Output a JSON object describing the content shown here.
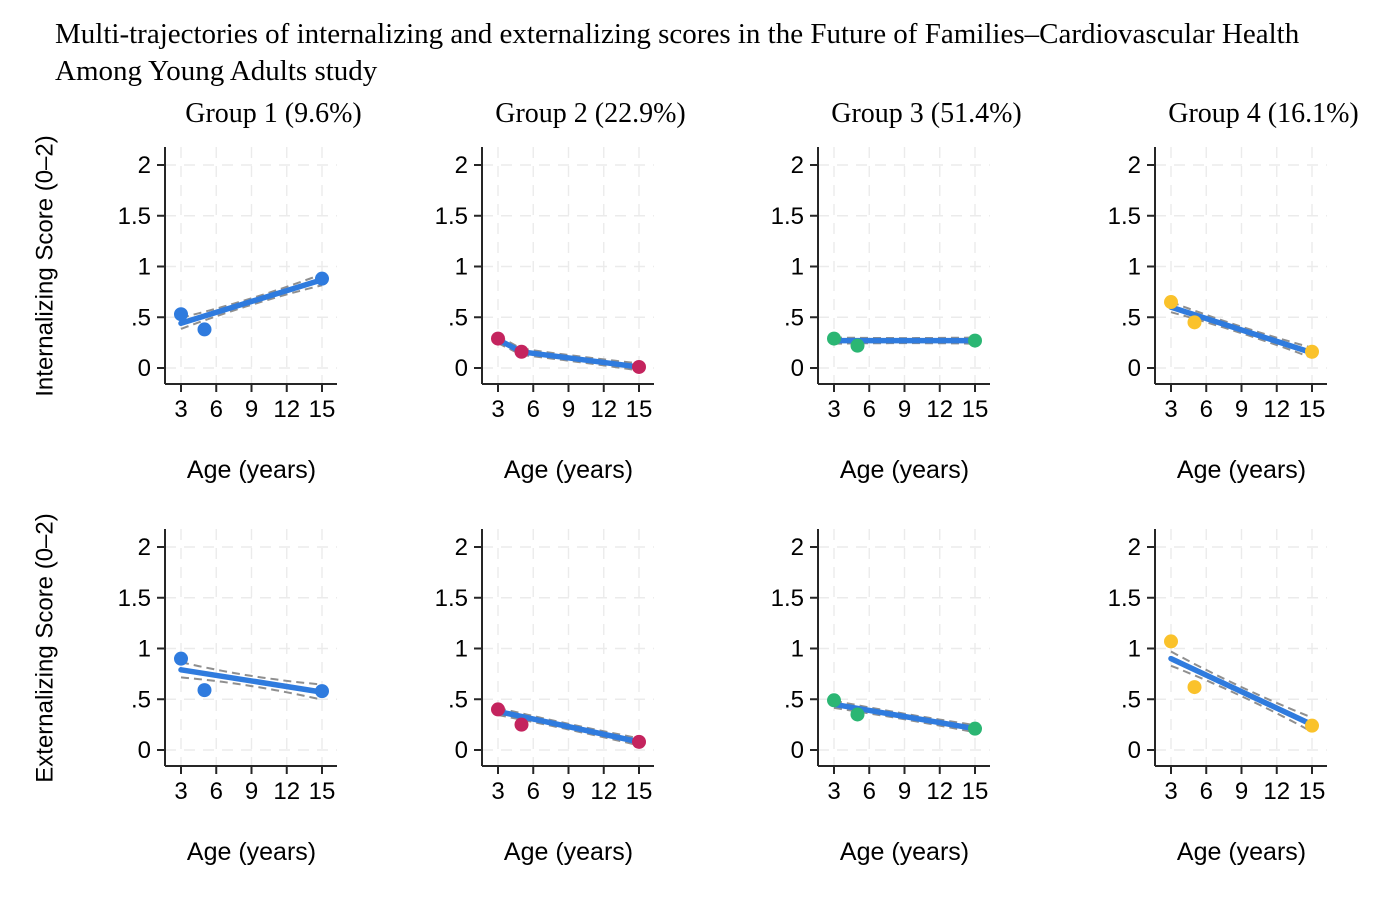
{
  "title_lines": [
    "Multi-trajectories of internalizing and externalizing scores in the Future of Families–Cardiovascular Health",
    "Among Young Adults study"
  ],
  "colors": {
    "background": "#FFFFFF",
    "trend_line": "#2F7BDE",
    "ci_band": "#8F8F8F",
    "gridline": "#EBEBEB",
    "axis": "#262626",
    "text": "#000000"
  },
  "chart_data": {
    "type": "scatter",
    "subtype": "multi-panel trajectory plot with linear trend lines and dashed confidence bands",
    "layout": {
      "rows": 2,
      "cols": 4,
      "grid": "dashed light-gray gridlines on both axes",
      "legend": "none"
    },
    "title": "Multi-trajectories of internalizing and externalizing scores in the Future of Families–Cardiovascular Health Among Young Adults study",
    "column_labels": [
      "Group 1 (9.6%)",
      "Group 2 (22.9%)",
      "Group 3 (51.4%)",
      "Group 4 (16.1%)"
    ],
    "row_labels": [
      "Internalizing Score (0–2)",
      "Externalizing Score (0–2)"
    ],
    "marker_colors": [
      "#2F7BDE",
      "#C4245E",
      "#2BB673",
      "#FAC22B"
    ],
    "x": {
      "label": "Age (years)",
      "ticks": [
        3,
        6,
        9,
        12,
        15
      ],
      "domain": [
        3,
        15
      ]
    },
    "y": {
      "tick_values": [
        0,
        0.5,
        1,
        1.5,
        2
      ],
      "tick_labels": [
        "0",
        ".5",
        "1",
        "1.5",
        "2"
      ],
      "domain": [
        0,
        2
      ]
    },
    "panels": [
      {
        "row": 0,
        "col": 0,
        "scatter": {
          "x": [
            3,
            5,
            15
          ],
          "y": [
            0.53,
            0.38,
            0.88
          ]
        },
        "trend": {
          "x": [
            3,
            15
          ],
          "y": [
            0.44,
            0.87
          ]
        },
        "ci": {
          "end": 0.055,
          "mid": 0.032
        }
      },
      {
        "row": 0,
        "col": 1,
        "scatter": {
          "x": [
            3,
            5,
            15
          ],
          "y": [
            0.29,
            0.16,
            0.01
          ]
        },
        "trend": {
          "x": [
            3,
            5,
            15
          ],
          "y": [
            0.28,
            0.16,
            0.01
          ]
        },
        "ci": {
          "end": 0.035,
          "mid": 0.028
        }
      },
      {
        "row": 0,
        "col": 2,
        "scatter": {
          "x": [
            3,
            5,
            15
          ],
          "y": [
            0.29,
            0.22,
            0.27
          ]
        },
        "trend": {
          "x": [
            3,
            15
          ],
          "y": [
            0.27,
            0.27
          ]
        },
        "ci": {
          "end": 0.03,
          "mid": 0.025
        }
      },
      {
        "row": 0,
        "col": 3,
        "scatter": {
          "x": [
            3,
            5,
            15
          ],
          "y": [
            0.65,
            0.45,
            0.16
          ]
        },
        "trend": {
          "x": [
            3,
            15
          ],
          "y": [
            0.6,
            0.15
          ]
        },
        "ci": {
          "end": 0.05,
          "mid": 0.032
        }
      },
      {
        "row": 1,
        "col": 0,
        "scatter": {
          "x": [
            3,
            5,
            15
          ],
          "y": [
            0.9,
            0.59,
            0.58
          ]
        },
        "trend": {
          "x": [
            3,
            15
          ],
          "y": [
            0.79,
            0.57
          ]
        },
        "ci": {
          "end": 0.075,
          "mid": 0.05
        }
      },
      {
        "row": 1,
        "col": 1,
        "scatter": {
          "x": [
            3,
            5,
            15
          ],
          "y": [
            0.4,
            0.25,
            0.08
          ]
        },
        "trend": {
          "x": [
            3,
            15
          ],
          "y": [
            0.38,
            0.08
          ]
        },
        "ci": {
          "end": 0.035,
          "mid": 0.028
        }
      },
      {
        "row": 1,
        "col": 2,
        "scatter": {
          "x": [
            3,
            5,
            15
          ],
          "y": [
            0.49,
            0.35,
            0.21
          ]
        },
        "trend": {
          "x": [
            3,
            15
          ],
          "y": [
            0.45,
            0.21
          ]
        },
        "ci": {
          "end": 0.035,
          "mid": 0.028
        }
      },
      {
        "row": 1,
        "col": 3,
        "scatter": {
          "x": [
            3,
            5,
            15
          ],
          "y": [
            1.07,
            0.62,
            0.24
          ]
        },
        "trend": {
          "x": [
            3,
            15
          ],
          "y": [
            0.9,
            0.25
          ]
        },
        "ci": {
          "end": 0.07,
          "mid": 0.045
        }
      }
    ]
  }
}
